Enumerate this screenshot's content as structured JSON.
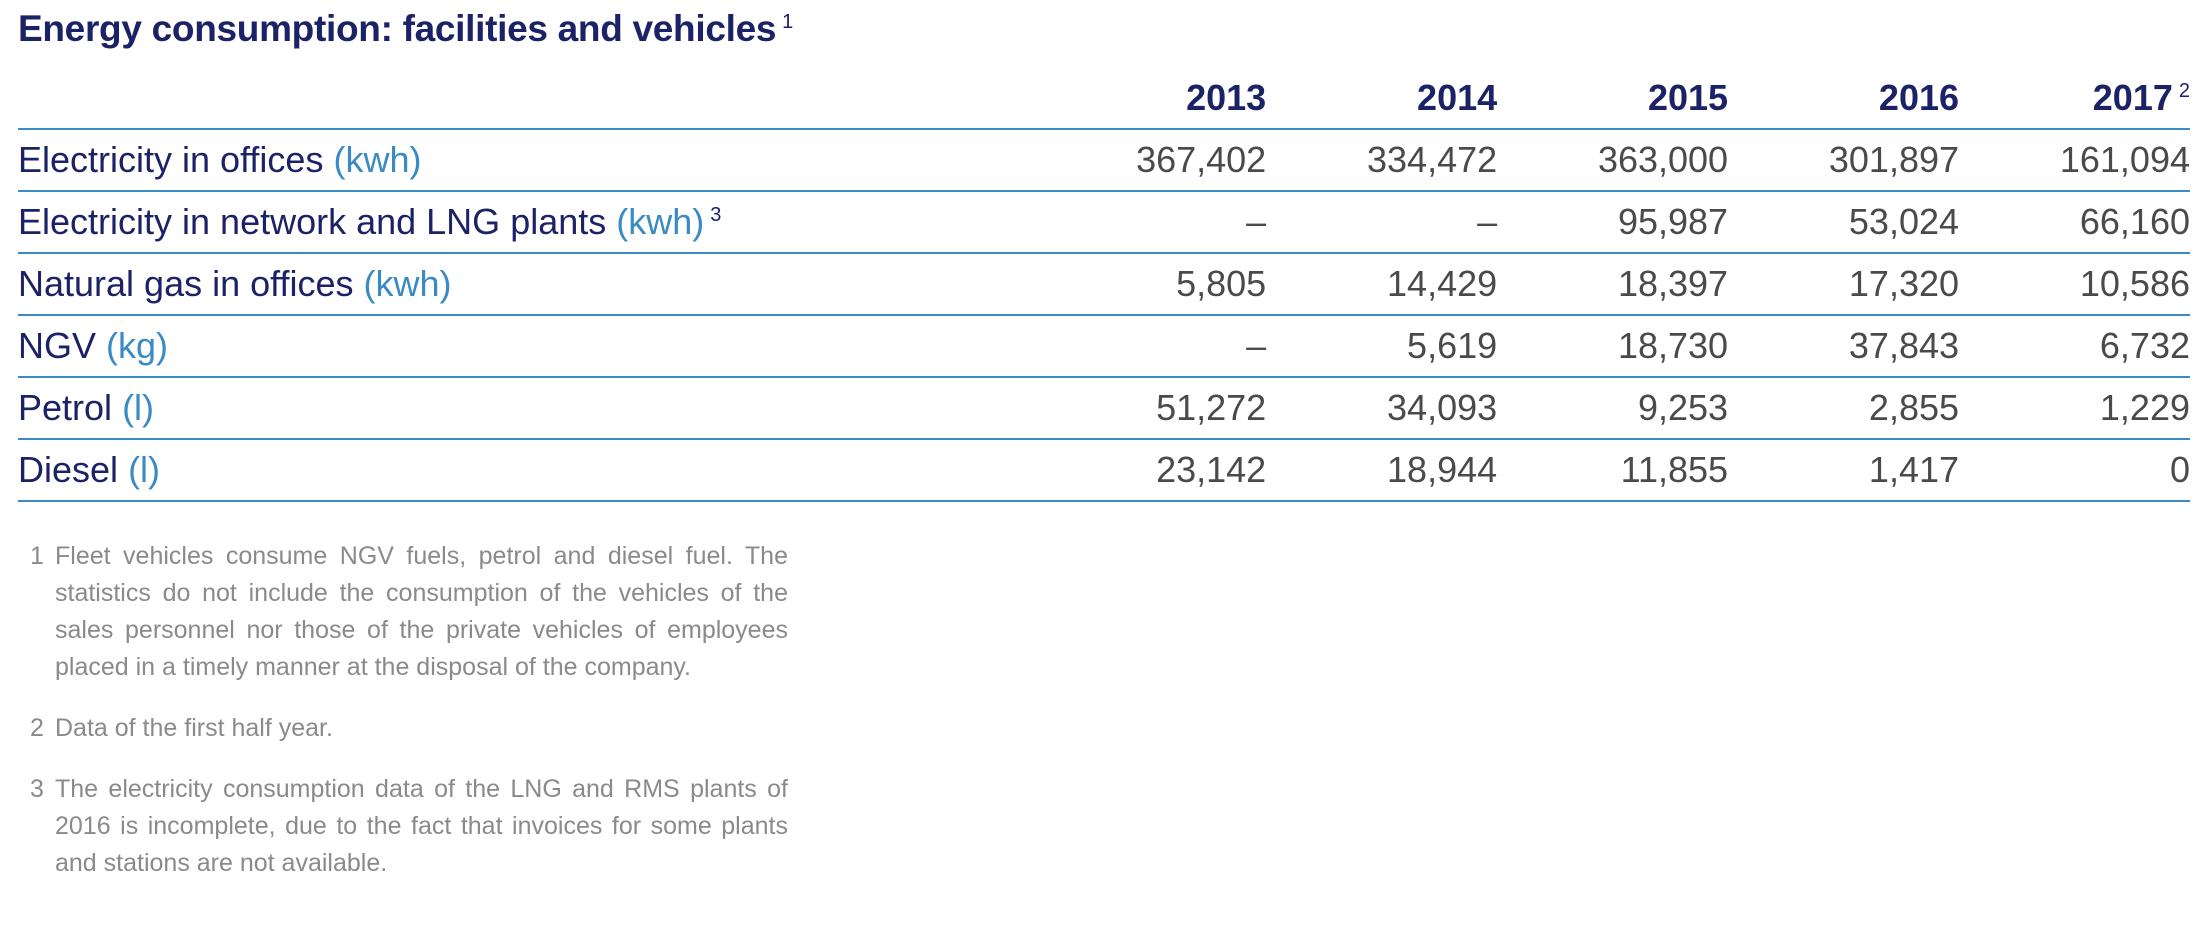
{
  "title": "Energy consumption: facilities and vehicles",
  "title_note": "1",
  "years": [
    {
      "label": "2013",
      "note": ""
    },
    {
      "label": "2014",
      "note": ""
    },
    {
      "label": "2015",
      "note": ""
    },
    {
      "label": "2016",
      "note": ""
    },
    {
      "label": "2017",
      "note": "2"
    }
  ],
  "rows": [
    {
      "label": "Electricity in offices",
      "unit": "(kwh)",
      "note": "",
      "values": [
        "367,402",
        "334,472",
        "363,000",
        "301,897",
        "161,094"
      ]
    },
    {
      "label": "Electricity in network and LNG plants",
      "unit": "(kwh)",
      "note": "3",
      "values": [
        "–",
        "–",
        "95,987",
        "53,024",
        "66,160"
      ]
    },
    {
      "label": "Natural gas in offices",
      "unit": "(kwh)",
      "note": "",
      "values": [
        "5,805",
        "14,429",
        "18,397",
        "17,320",
        "10,586"
      ]
    },
    {
      "label": "NGV",
      "unit": "(kg)",
      "note": "",
      "values": [
        "–",
        "5,619",
        "18,730",
        "37,843",
        "6,732"
      ]
    },
    {
      "label": "Petrol",
      "unit": "(l)",
      "note": "",
      "values": [
        "51,272",
        "34,093",
        "9,253",
        "2,855",
        "1,229"
      ]
    },
    {
      "label": "Diesel",
      "unit": "(l)",
      "note": "",
      "values": [
        "23,142",
        "18,944",
        "11,855",
        "1,417",
        "0"
      ]
    }
  ],
  "footnotes": [
    {
      "num": "1",
      "text": "Fleet vehicles consume NGV fuels, petrol and diesel fuel. The statistics do not include the consumption of the vehicles of the sales personnel nor those of the private vehicles of employees placed in a timely manner at the disposal of the company."
    },
    {
      "num": "2",
      "text": "Data of the first half year."
    },
    {
      "num": "3",
      "text": "The electricity consumption data of the LNG and RMS plants of 2016 is incomplete, due to the fact that invoices for some plants and stations are not available."
    }
  ],
  "colors": {
    "title": "#1b2266",
    "accent": "#3a8bc4",
    "values": "#4a4a4a",
    "footnotes": "#8a8a8a"
  }
}
